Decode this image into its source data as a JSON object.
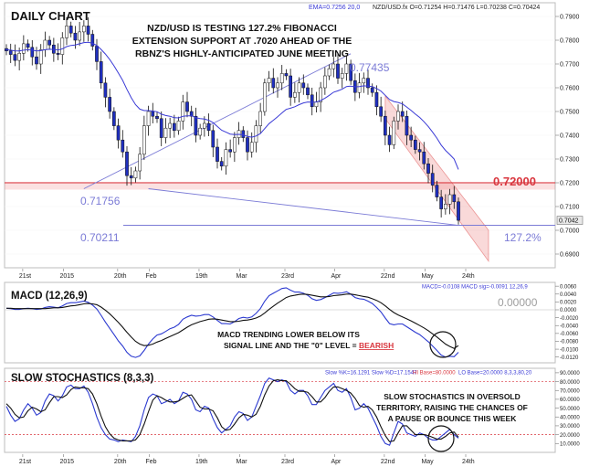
{
  "chart_data": [
    {
      "type": "candlestick",
      "panel": "price",
      "title": "DAILY CHART",
      "header_info": "EMA=0.7256  20,0",
      "header_info_ohlc": "NZD/USD.fx O=0.71254 H=0.71476 L=0.70238 C=0.70424",
      "annotation": "NZD/USD IS TESTING 127.2% FIBONACCI EXTENSION SUPPORT AT .7020 AHEAD OF THE RBNZ'S HIGHLY-ANTICIPATED JUNE MEETING",
      "annotation_lines": [
        "NZD/USD IS TESTING 127.2% FIBONACCI",
        "EXTENSION SUPPORT AT .7020 AHEAD OF THE",
        "RBNZ'S HIGHLY-ANTICIPATED JUNE MEETING"
      ],
      "ylim": [
        0.685,
        0.795
      ],
      "yticks": [
        "0.7900",
        "0.7800",
        "0.7700",
        "0.7600",
        "0.7500",
        "0.7400",
        "0.7300",
        "0.7200",
        "0.7100",
        "0.7000",
        "0.6900"
      ],
      "current_price_label": "0.7042",
      "current_price": 0.7042,
      "levels": [
        {
          "label": "0.72000",
          "value": 0.72,
          "color": "#d9363e"
        },
        {
          "label": "0.71756",
          "value": 0.71756,
          "color": "#7b7bd6"
        },
        {
          "label": "0.77435",
          "value": 0.77435,
          "color": "#7b7bd6"
        },
        {
          "label": "0.70211",
          "value": 0.70211,
          "color": "#7b7bd6"
        },
        {
          "label": "127.2%",
          "value": 0.70211,
          "color": "#7b7bd6"
        }
      ],
      "candles": [
        0.7755,
        0.774,
        0.7715,
        0.7745,
        0.7785,
        0.777,
        0.773,
        0.77,
        0.776,
        0.78,
        0.778,
        0.7745,
        0.774,
        0.781,
        0.786,
        0.783,
        0.78,
        0.7835,
        0.786,
        0.7825,
        0.7775,
        0.771,
        0.762,
        0.756,
        0.75,
        0.744,
        0.738,
        0.733,
        0.723,
        0.722,
        0.725,
        0.732,
        0.744,
        0.75,
        0.748,
        0.747,
        0.739,
        0.743,
        0.745,
        0.742,
        0.746,
        0.754,
        0.75,
        0.748,
        0.74,
        0.743,
        0.745,
        0.742,
        0.735,
        0.729,
        0.727,
        0.734,
        0.733,
        0.739,
        0.742,
        0.739,
        0.733,
        0.737,
        0.744,
        0.75,
        0.762,
        0.764,
        0.76,
        0.762,
        0.766,
        0.765,
        0.756,
        0.758,
        0.762,
        0.76,
        0.757,
        0.752,
        0.754,
        0.76,
        0.765,
        0.768,
        0.77,
        0.764,
        0.766,
        0.77,
        0.763,
        0.758,
        0.762,
        0.764,
        0.76,
        0.758,
        0.752,
        0.748,
        0.74,
        0.736,
        0.746,
        0.75,
        0.748,
        0.74,
        0.738,
        0.734,
        0.733,
        0.728,
        0.724,
        0.719,
        0.714,
        0.709,
        0.711,
        0.715,
        0.712,
        0.7042
      ],
      "ema": [
        0.776,
        0.7758,
        0.7755,
        0.7755,
        0.7758,
        0.776,
        0.7758,
        0.7755,
        0.7756,
        0.776,
        0.7762,
        0.7761,
        0.7759,
        0.7764,
        0.7773,
        0.7778,
        0.778,
        0.7785,
        0.779,
        0.7791,
        0.7787,
        0.7778,
        0.7761,
        0.7742,
        0.7719,
        0.7692,
        0.7662,
        0.7631,
        0.7593,
        0.7558,
        0.7529,
        0.751,
        0.7504,
        0.7504,
        0.7502,
        0.7499,
        0.7489,
        0.7483,
        0.748,
        0.7474,
        0.7473,
        0.748,
        0.7482,
        0.7482,
        0.7474,
        0.747,
        0.7468,
        0.7463,
        0.7453,
        0.7437,
        0.7421,
        0.7413,
        0.7405,
        0.7403,
        0.7404,
        0.7402,
        0.7395,
        0.7392,
        0.7397,
        0.7407,
        0.7428,
        0.7449,
        0.7463,
        0.7478,
        0.7494,
        0.7509,
        0.7514,
        0.752,
        0.7529,
        0.7536,
        0.754,
        0.7539,
        0.754,
        0.7546,
        0.7556,
        0.7568,
        0.7581,
        0.7587,
        0.7594,
        0.7605,
        0.7607,
        0.7604,
        0.7605,
        0.7608,
        0.7607,
        0.7605,
        0.7597,
        0.7586,
        0.7568,
        0.755,
        0.7542,
        0.7538,
        0.7532,
        0.7519,
        0.7505,
        0.7489,
        0.7475,
        0.7457,
        0.7437,
        0.7413,
        0.7388,
        0.7359,
        0.7336,
        0.7319,
        0.73,
        0.7256
      ],
      "trendlines": [
        {
          "from": [
            18,
            0.7175
          ],
          "to": [
            80,
            0.7743
          ],
          "color": "#7b7bd6"
        },
        {
          "from": [
            33,
            0.7175
          ],
          "to": [
            105,
            0.7021
          ],
          "color": "#7b7bd6"
        }
      ],
      "channel": {
        "start_index": 88,
        "end_index": 112,
        "upper": [
          0.7565,
          0.7
        ],
        "lower": [
          0.747,
          0.687
        ]
      },
      "x_tick_labels": [
        "21st",
        "2015",
        "20th",
        "Feb",
        "19th",
        "Mar",
        "23rd",
        "Apr",
        "22nd",
        "May",
        "24th"
      ]
    },
    {
      "type": "line",
      "panel": "macd",
      "title": "MACD (12,26,9)",
      "header_info": "MACD=-0.0108  MACD sig=-0.0091  12,26,9",
      "zero_label": "0.00000",
      "annotation_lines": [
        "MACD TRENDING LOWER BELOW ITS",
        "SIGNAL LINE AND THE \"0\" LEVEL = "
      ],
      "annotation_emphasis": "BEARISH",
      "ylim": [
        -0.013,
        0.0065
      ],
      "yticks": [
        "0.0060",
        "0.0040",
        "0.0020",
        "0.0000",
        "-0.0020",
        "-0.0040",
        "-0.0060",
        "-0.0080",
        "-0.0100",
        "-0.0120"
      ],
      "series": [
        {
          "values": [
            0.0004,
            0.0003,
            0.0001,
            0.0001,
            0.0003,
            0.0004,
            0.0003,
            0.0001,
            0.0002,
            0.0006,
            0.0008,
            0.0007,
            0.0005,
            0.001,
            0.0016,
            0.0018,
            0.0018,
            0.002,
            0.0022,
            0.0019,
            0.0012,
            0.0002,
            -0.0014,
            -0.0031,
            -0.0047,
            -0.0063,
            -0.0079,
            -0.0092,
            -0.0108,
            -0.0118,
            -0.0121,
            -0.0117,
            -0.0103,
            -0.0087,
            -0.0074,
            -0.0064,
            -0.0061,
            -0.0055,
            -0.0048,
            -0.0044,
            -0.0037,
            -0.0024,
            -0.0018,
            -0.0014,
            -0.0016,
            -0.0015,
            -0.0012,
            -0.0012,
            -0.0018,
            -0.0027,
            -0.0035,
            -0.0035,
            -0.0036,
            -0.003,
            -0.0022,
            -0.0019,
            -0.0021,
            -0.0018,
            -0.0009,
            0.0003,
            0.0022,
            0.0036,
            0.0042,
            0.0048,
            0.0054,
            0.0056,
            0.005,
            0.0045,
            0.0045,
            0.0042,
            0.0037,
            0.0028,
            0.0024,
            0.0026,
            0.0031,
            0.0037,
            0.0043,
            0.0042,
            0.0043,
            0.0046,
            0.004,
            0.0031,
            0.0028,
            0.0027,
            0.0022,
            0.0016,
            0.0006,
            -0.0005,
            -0.0021,
            -0.0035,
            -0.0038,
            -0.0036,
            -0.0036,
            -0.0043,
            -0.005,
            -0.0057,
            -0.0063,
            -0.0072,
            -0.0081,
            -0.0092,
            -0.0103,
            -0.0115,
            -0.012,
            -0.0118,
            -0.0119,
            -0.0108
          ]
        },
        {
          "values": [
            0.0004,
            0.0004,
            0.0003,
            0.0003,
            0.0003,
            0.0003,
            0.0003,
            0.0003,
            0.0003,
            0.0003,
            0.0004,
            0.0005,
            0.0005,
            0.0006,
            0.0008,
            0.001,
            0.0011,
            0.0013,
            0.0015,
            0.0016,
            0.0015,
            0.0013,
            0.0007,
            -0.0001,
            -0.001,
            -0.0021,
            -0.0032,
            -0.0044,
            -0.0057,
            -0.0069,
            -0.008,
            -0.0087,
            -0.0091,
            -0.009,
            -0.0087,
            -0.0082,
            -0.0078,
            -0.0073,
            -0.0068,
            -0.0063,
            -0.0058,
            -0.0051,
            -0.0044,
            -0.0038,
            -0.0034,
            -0.003,
            -0.0027,
            -0.0024,
            -0.0023,
            -0.0024,
            -0.0026,
            -0.0028,
            -0.003,
            -0.003,
            -0.0029,
            -0.0027,
            -0.0026,
            -0.0024,
            -0.0021,
            -0.0016,
            -0.0008,
            0.0001,
            0.0009,
            0.0017,
            0.0024,
            0.0031,
            0.0035,
            0.0037,
            0.0039,
            0.004,
            0.0039,
            0.0037,
            0.0035,
            0.0033,
            0.0033,
            0.0034,
            0.0036,
            0.0037,
            0.0038,
            0.004,
            0.004,
            0.0038,
            0.0036,
            0.0034,
            0.0032,
            0.0028,
            0.0024,
            0.0018,
            0.001,
            0.0001,
            -0.0007,
            -0.0013,
            -0.0018,
            -0.0023,
            -0.0028,
            -0.0034,
            -0.004,
            -0.0046,
            -0.0053,
            -0.0061,
            -0.0069,
            -0.0078,
            -0.0087,
            -0.0093,
            -0.0098,
            -0.0091
          ]
        }
      ]
    },
    {
      "type": "line",
      "panel": "stochastic",
      "title": "SLOW STOCHASTICS (8,3,3)",
      "header_info_a": "Slow %K=16.1291  Slow %D=17.1547",
      "header_info_b": "HI Base=80.0000",
      "header_info_c": "LO Base=20.0000  8,3,3,80,20",
      "annotation_lines": [
        "SLOW STOCHASTICS IN OVERSOLD",
        "TERRITORY, RAISING THE CHANCES OF",
        "A PAUSE OR BOUNCE THIS WEEK"
      ],
      "ylim": [
        2,
        93
      ],
      "yticks": [
        "90.0000",
        "80.0000",
        "70.0000",
        "60.0000",
        "50.0000",
        "40.0000",
        "30.0000",
        "20.0000",
        "10.0000"
      ],
      "bases": [
        {
          "label": "HI Base",
          "value": 80
        },
        {
          "label": "LO Base",
          "value": 20
        }
      ],
      "series": [
        {
          "values": [
            52,
            42,
            35,
            38,
            48,
            55,
            50,
            42,
            45,
            58,
            66,
            64,
            58,
            64,
            74,
            76,
            72,
            72,
            75,
            68,
            55,
            40,
            28,
            20,
            15,
            14,
            12,
            14,
            13,
            12,
            18,
            30,
            48,
            62,
            66,
            64,
            55,
            57,
            60,
            55,
            58,
            68,
            66,
            60,
            48,
            46,
            52,
            50,
            38,
            28,
            22,
            26,
            30,
            40,
            46,
            44,
            36,
            40,
            52,
            64,
            78,
            84,
            82,
            80,
            82,
            80,
            70,
            66,
            70,
            70,
            64,
            54,
            54,
            62,
            70,
            74,
            78,
            70,
            68,
            72,
            62,
            48,
            50,
            55,
            50,
            40,
            30,
            18,
            10,
            8,
            22,
            35,
            32,
            22,
            20,
            18,
            22,
            20,
            16,
            14,
            14,
            18,
            22,
            26,
            20,
            16.1
          ]
        },
        {
          "values": [
            55,
            50,
            43,
            39,
            40,
            47,
            51,
            49,
            46,
            48,
            56,
            63,
            63,
            62,
            65,
            71,
            74,
            73,
            73,
            72,
            66,
            55,
            41,
            29,
            21,
            16,
            14,
            13,
            13,
            13,
            14,
            20,
            32,
            46,
            59,
            64,
            62,
            59,
            57,
            57,
            58,
            61,
            64,
            65,
            58,
            51,
            49,
            49,
            47,
            39,
            29,
            25,
            26,
            32,
            39,
            43,
            42,
            40,
            43,
            52,
            65,
            75,
            81,
            82,
            81,
            81,
            77,
            72,
            69,
            69,
            68,
            63,
            57,
            57,
            62,
            69,
            74,
            74,
            72,
            70,
            67,
            61,
            53,
            51,
            52,
            48,
            40,
            29,
            19,
            12,
            13,
            22,
            30,
            30,
            25,
            20,
            20,
            20,
            19,
            17,
            15,
            15,
            18,
            22,
            23,
            17.2
          ]
        }
      ],
      "x_tick_labels": [
        "21st",
        "2015",
        "20th",
        "Feb",
        "19th",
        "Mar",
        "23rd",
        "Apr",
        "22nd",
        "May",
        "24th"
      ]
    }
  ]
}
